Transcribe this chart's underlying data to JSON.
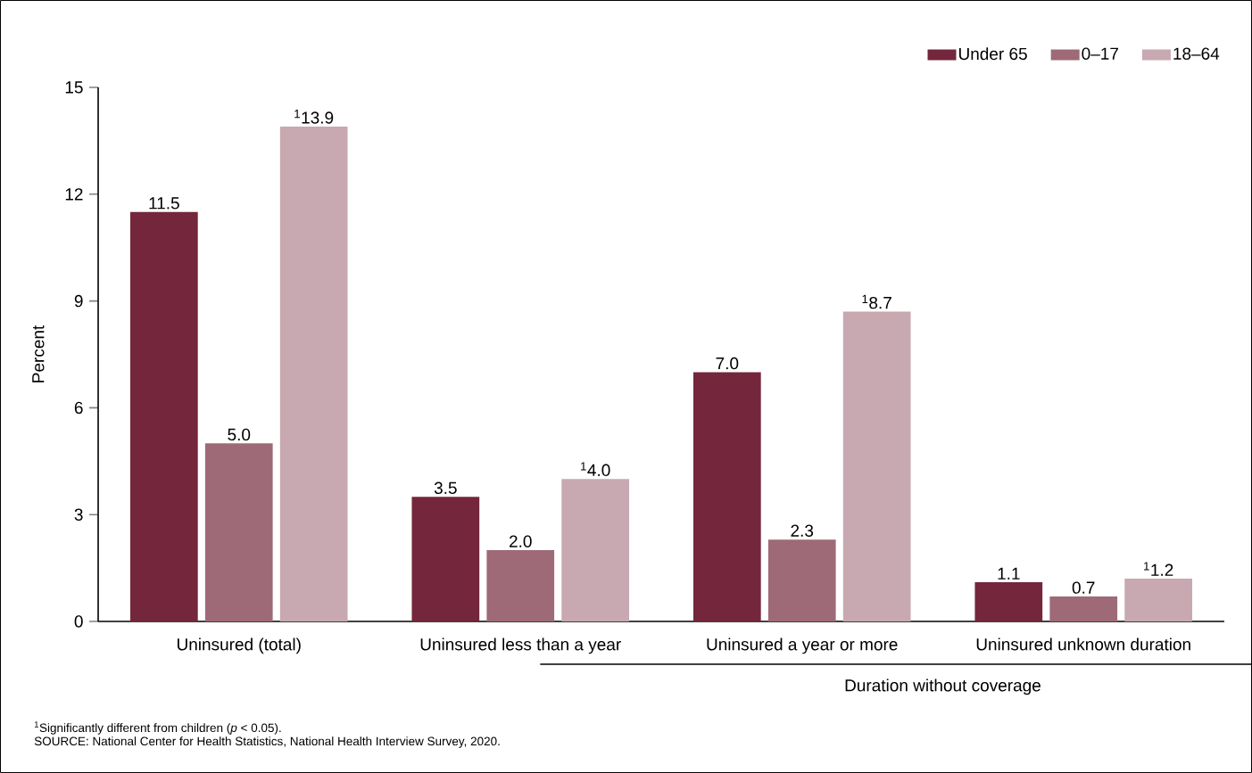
{
  "chart_data": {
    "type": "bar",
    "xlabel": "Duration without coverage",
    "ylabel": "Percent",
    "categories": [
      "Uninsured (total)",
      "Uninsured less than a year",
      "Uninsured a year or more",
      "Uninsured unknown duration"
    ],
    "series": [
      {
        "name": "Under 65",
        "color": "#74263c",
        "values": [
          11.5,
          3.5,
          7.0,
          1.1
        ],
        "value_labels": [
          "11.5",
          "3.5",
          "7.0",
          "1.1"
        ]
      },
      {
        "name": "0–17",
        "color": "#9e6a77",
        "values": [
          5.0,
          2.0,
          2.3,
          0.7
        ],
        "value_labels": [
          "5.0",
          "2.0",
          "2.3",
          "0.7"
        ]
      },
      {
        "name": "18–64",
        "color": "#c8a8b1",
        "values": [
          13.9,
          4.0,
          8.7,
          1.2
        ],
        "value_labels": [
          "$^{1}$13.9",
          "$^{1}$4.0",
          "$^{1}$8.7",
          "$^{1}$1.2"
        ]
      }
    ],
    "ylim": [
      0,
      15
    ],
    "yticks": [
      0,
      3,
      6,
      9,
      12,
      15
    ],
    "grid": false,
    "legend": "top right",
    "annotations": [
      "$^{1}$Significantly different from children (*p* < 0.05).",
      "SOURCE: National Center for Health Statistics, National Health Interview Survey, 2020."
    ]
  }
}
